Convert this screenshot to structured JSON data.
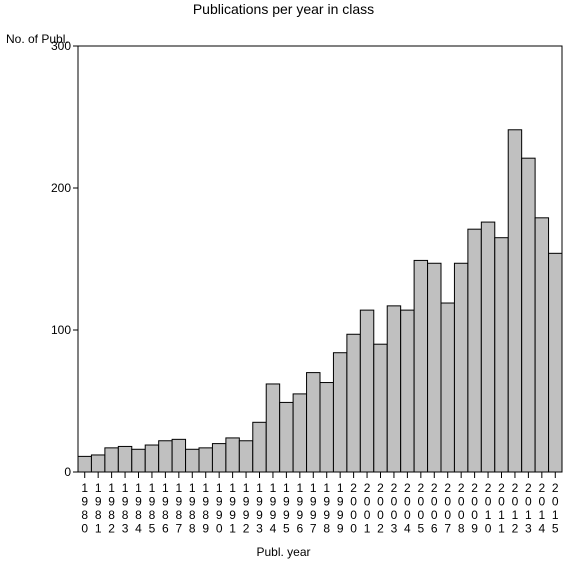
{
  "chart_data": {
    "type": "bar",
    "title": "Publications per year in class",
    "xlabel": "Publ. year",
    "ylabel": "No. of Publ.",
    "ylim": [
      0,
      300
    ],
    "yticks": [
      "0",
      "100",
      "200",
      "300"
    ],
    "categories": [
      "1980",
      "1981",
      "1982",
      "1983",
      "1984",
      "1985",
      "1986",
      "1987",
      "1988",
      "1989",
      "1990",
      "1991",
      "1992",
      "1993",
      "1994",
      "1995",
      "1996",
      "1997",
      "1998",
      "1999",
      "2000",
      "2001",
      "2002",
      "2003",
      "2004",
      "2005",
      "2006",
      "2007",
      "2008",
      "2009",
      "2010",
      "2011",
      "2012",
      "2013",
      "2014",
      "2015"
    ],
    "values": [
      11,
      12,
      17,
      18,
      16,
      19,
      22,
      23,
      16,
      17,
      20,
      24,
      22,
      35,
      62,
      49,
      55,
      70,
      63,
      84,
      97,
      114,
      90,
      117,
      114,
      149,
      147,
      119,
      147,
      171,
      176,
      165,
      241,
      221,
      179,
      154
    ],
    "bar_color": "#c0c0c0",
    "grid": false,
    "legend": "none"
  }
}
